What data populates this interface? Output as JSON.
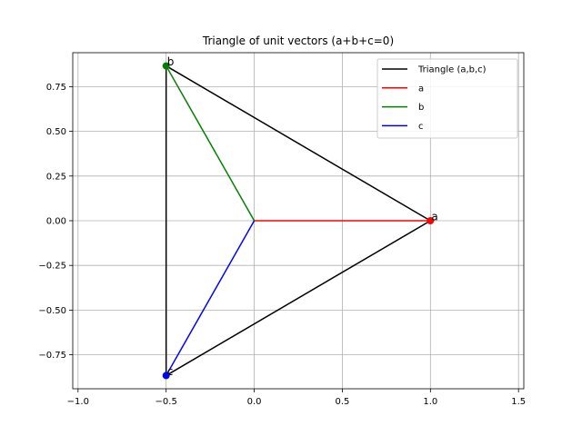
{
  "chart_data": {
    "type": "line",
    "title": "Triangle of unit vectors (a+b+c=0)",
    "xlabel": "",
    "ylabel": "",
    "xlim": [
      -1.03,
      1.53
    ],
    "ylim": [
      -0.94,
      0.94
    ],
    "xticks": [
      -1.0,
      -0.5,
      0.0,
      0.5,
      1.0,
      1.5
    ],
    "xtick_labels": [
      "−1.0",
      "−0.5",
      "0.0",
      "0.5",
      "1.0",
      "1.5"
    ],
    "yticks": [
      -0.75,
      -0.5,
      -0.25,
      0.0,
      0.25,
      0.5,
      0.75
    ],
    "ytick_labels": [
      "−0.75",
      "−0.50",
      "−0.25",
      "0.00",
      "0.25",
      "0.50",
      "0.75"
    ],
    "grid": true,
    "legend_position": "top-right",
    "series": [
      {
        "name": "Triangle (a,b,c)",
        "color": "#000000",
        "x": [
          1.0,
          -0.5,
          -0.5,
          1.0
        ],
        "y": [
          0.0,
          0.866,
          -0.866,
          0.0
        ]
      },
      {
        "name": "a",
        "color": "#ff0000",
        "x": [
          0.0,
          1.0
        ],
        "y": [
          0.0,
          0.0
        ]
      },
      {
        "name": "b",
        "color": "#008000",
        "x": [
          0.0,
          -0.5
        ],
        "y": [
          0.0,
          0.866
        ]
      },
      {
        "name": "c",
        "color": "#0000ff",
        "x": [
          0.0,
          -0.5
        ],
        "y": [
          0.0,
          -0.866
        ]
      }
    ],
    "points": [
      {
        "label": "a",
        "x": 1.0,
        "y": 0.0,
        "color": "#ff0000"
      },
      {
        "label": "b",
        "x": -0.5,
        "y": 0.866,
        "color": "#008000"
      },
      {
        "label": "c",
        "x": -0.5,
        "y": -0.866,
        "color": "#0000ff"
      }
    ]
  }
}
